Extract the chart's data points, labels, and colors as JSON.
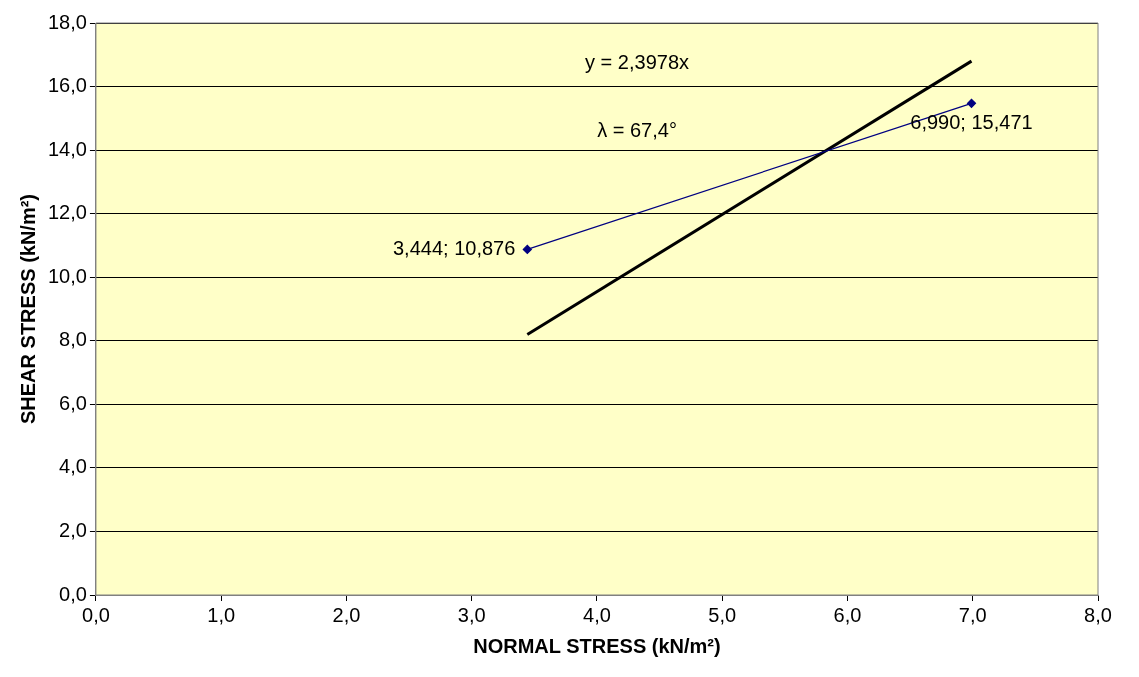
{
  "chart_data": {
    "type": "scatter",
    "xlabel": "NORMAL STRESS (kN/m²)",
    "ylabel": "SHEAR STRESS (kN/m²)",
    "xlim": [
      0,
      8
    ],
    "ylim": [
      0,
      18
    ],
    "xticks": [
      {
        "value": 0,
        "label": "0,0"
      },
      {
        "value": 1,
        "label": "1,0"
      },
      {
        "value": 2,
        "label": "2,0"
      },
      {
        "value": 3,
        "label": "3,0"
      },
      {
        "value": 4,
        "label": "4,0"
      },
      {
        "value": 5,
        "label": "5,0"
      },
      {
        "value": 6,
        "label": "6,0"
      },
      {
        "value": 7,
        "label": "7,0"
      },
      {
        "value": 8,
        "label": "8,0"
      }
    ],
    "yticks": [
      {
        "value": 0,
        "label": "0,0"
      },
      {
        "value": 2,
        "label": "2,0"
      },
      {
        "value": 4,
        "label": "4,0"
      },
      {
        "value": 6,
        "label": "6,0"
      },
      {
        "value": 8,
        "label": "8,0"
      },
      {
        "value": 10,
        "label": "10,0"
      },
      {
        "value": 12,
        "label": "12,0"
      },
      {
        "value": 14,
        "label": "14,0"
      },
      {
        "value": 16,
        "label": "16,0"
      },
      {
        "value": 18,
        "label": "18,0"
      }
    ],
    "grid": "y",
    "x": [
      3.444,
      6.99
    ],
    "series": [
      {
        "type": "line",
        "color": "#000080",
        "marker": "diamond",
        "values": [
          10.876,
          15.471
        ],
        "value_labels": [
          "3,444; 10,876",
          "6,990; 15,471"
        ]
      },
      {
        "type": "line",
        "color": "#000000",
        "marker": "none",
        "values": [
          8.2,
          16.8
        ]
      }
    ],
    "annotations": [
      "y = 2,3978x",
      "λ = 67,4°"
    ]
  }
}
